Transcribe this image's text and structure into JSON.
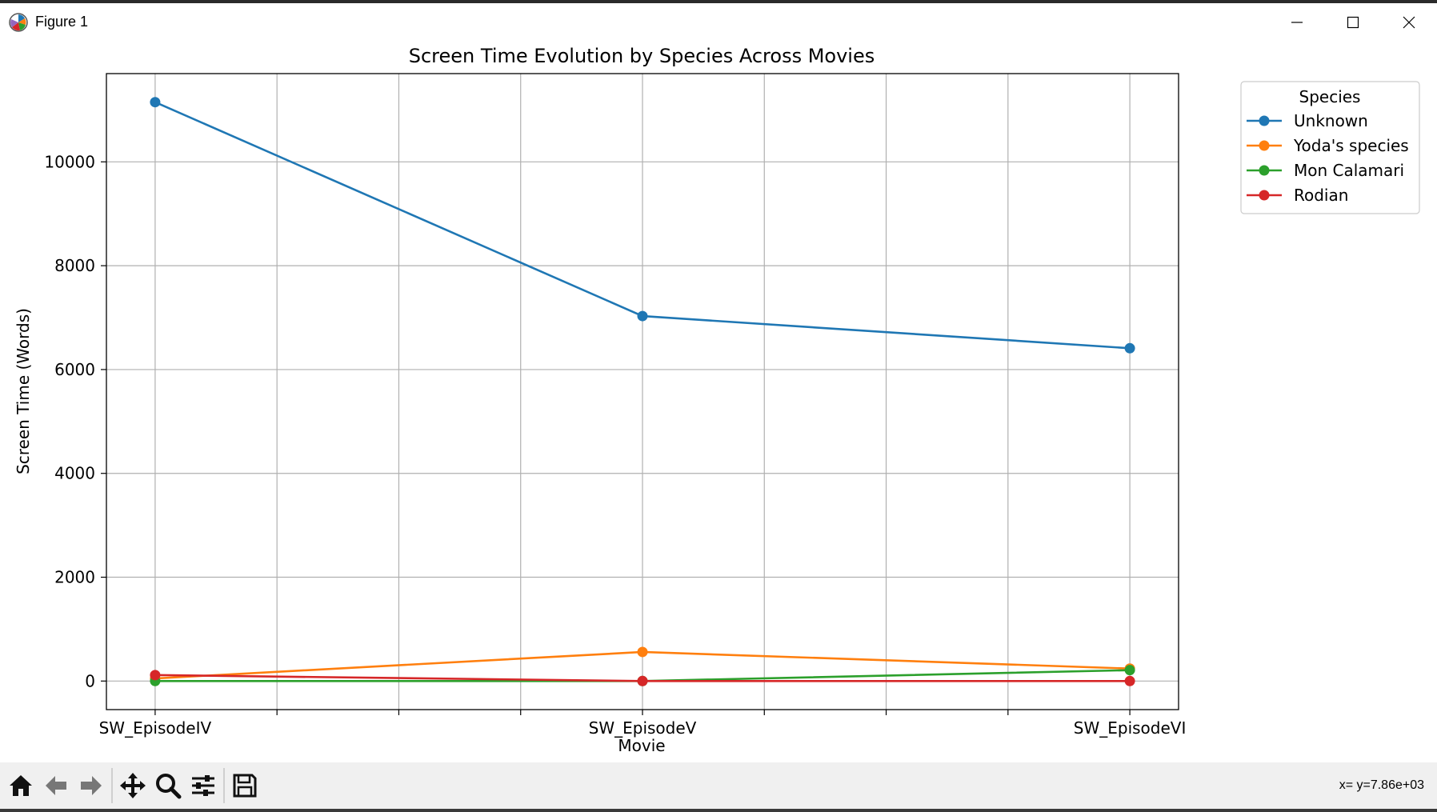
{
  "window": {
    "title": "Figure 1"
  },
  "toolbar": {
    "buttons": [
      "home-icon",
      "back-arrow-icon",
      "forward-arrow-icon",
      "pan-icon",
      "zoom-icon",
      "configure-subplots-icon",
      "save-icon"
    ],
    "coordinate_readout": "x= y=7.86e+03"
  },
  "chart_data": {
    "type": "line",
    "title": "Screen Time Evolution by Species Across Movies",
    "xlabel": "Movie",
    "ylabel": "Screen Time (Words)",
    "categories": [
      "SW_EpisodeIV",
      "SW_EpisodeV",
      "SW_EpisodeVI"
    ],
    "ylim": [
      -550,
      11700
    ],
    "yticks": [
      0,
      2000,
      4000,
      6000,
      8000,
      10000
    ],
    "yticklabels": [
      "0",
      "2000",
      "4000",
      "6000",
      "8000",
      "10000"
    ],
    "xminor_ticks": [
      0.25,
      0.5,
      0.75,
      1.25,
      1.5,
      1.75
    ],
    "grid": true,
    "legend": {
      "title": "Species",
      "placement": "upper right, outside plot"
    },
    "series": [
      {
        "name": "Unknown",
        "color": "#1f77b4",
        "values": [
          11150,
          7030,
          6410
        ]
      },
      {
        "name": "Yoda's species",
        "color": "#ff7f0e",
        "values": [
          50,
          560,
          240
        ]
      },
      {
        "name": "Mon Calamari",
        "color": "#2ca02c",
        "values": [
          0,
          0,
          210
        ]
      },
      {
        "name": "Rodian",
        "color": "#d62728",
        "values": [
          115,
          0,
          0
        ]
      }
    ]
  }
}
